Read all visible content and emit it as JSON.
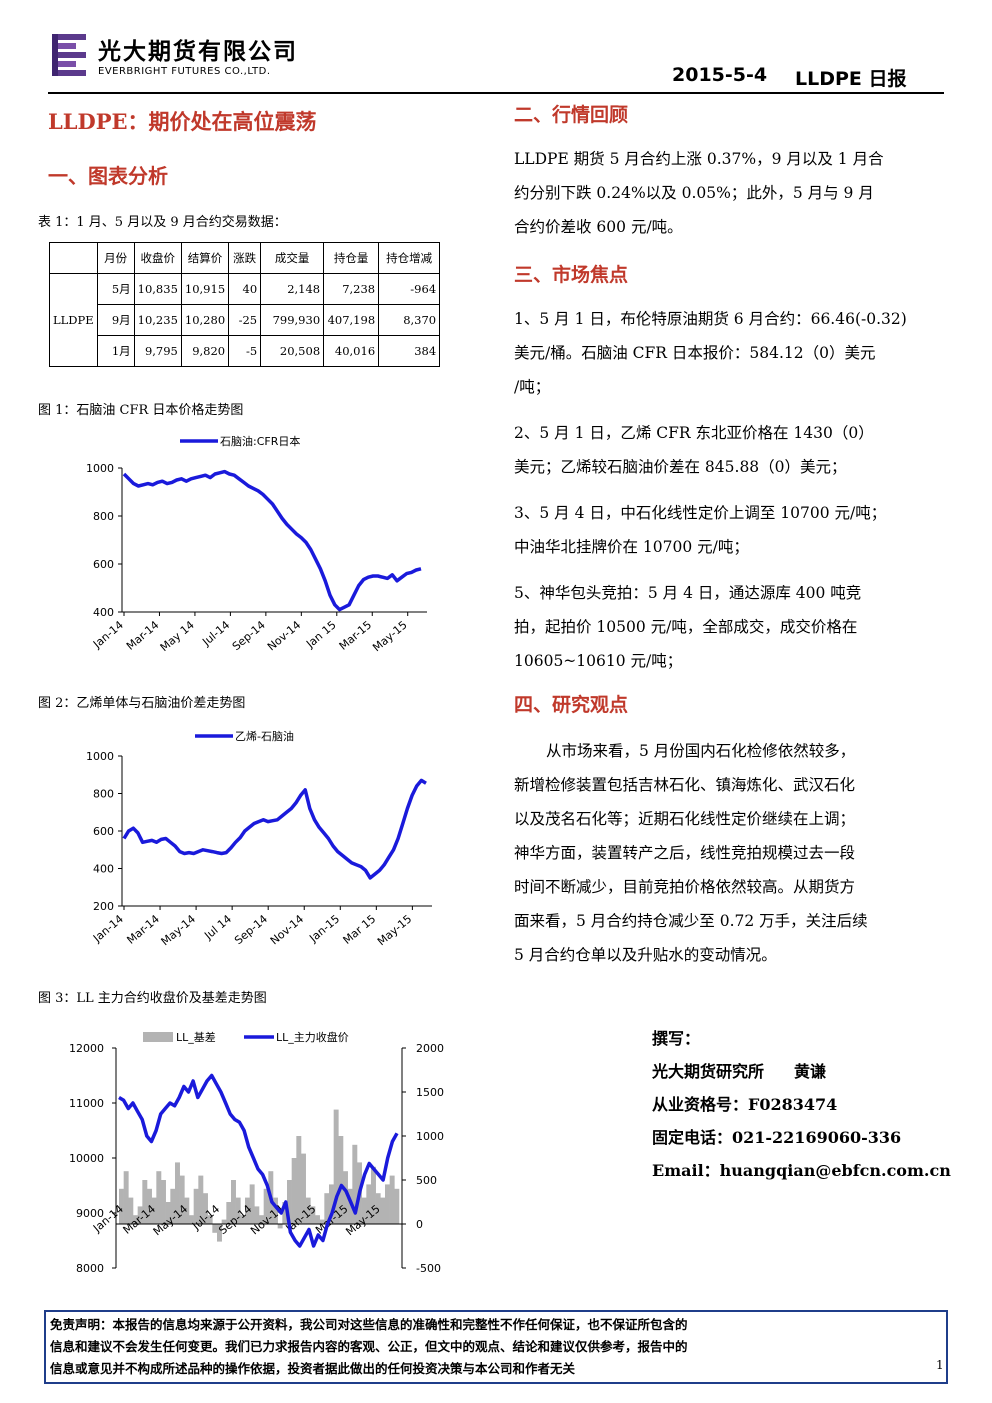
{
  "header": {
    "company_cn": "光大期货有限公司",
    "company_en": "EVERBRIGHT FUTURES CO.,LTD.",
    "date": "2015-5-4",
    "report": "LLDPE 日报"
  },
  "title": "LLDPE：期价处在高位震荡",
  "section1": {
    "heading": "一、图表分析"
  },
  "table1": {
    "caption": "表 1：1 月、5 月以及 9 月合约交易数据：",
    "headers": [
      "月份",
      "收盘价",
      "结算价",
      "涨跌",
      "成交量",
      "持仓量",
      "持仓增减"
    ],
    "row_label": "LLDPE",
    "rows": [
      [
        "5月",
        "10,835",
        "10,915",
        "40",
        "2,148",
        "7,238",
        "-964"
      ],
      [
        "9月",
        "10,235",
        "10,280",
        "-25",
        "799,930",
        "407,198",
        "8,370"
      ],
      [
        "1月",
        "9,795",
        "9,820",
        "-5",
        "20,508",
        "40,016",
        "384"
      ]
    ]
  },
  "fig1": {
    "caption": "图 1：石脑油 CFR 日本价格走势图"
  },
  "fig2": {
    "caption": "图 2：乙烯单体与石脑油价差走势图"
  },
  "fig3": {
    "caption": "图 3：LL 主力合约收盘价及基差走势图"
  },
  "chart_data": [
    {
      "type": "line",
      "legend": [
        "石脑油:CFR日本"
      ],
      "series": [
        {
          "name": "石脑油:CFR日本",
          "color": "#1a1adb",
          "values": [
            975,
            955,
            935,
            925,
            930,
            935,
            930,
            940,
            945,
            935,
            940,
            950,
            955,
            945,
            955,
            960,
            965,
            970,
            960,
            975,
            980,
            985,
            975,
            970,
            955,
            940,
            925,
            915,
            905,
            890,
            870,
            850,
            820,
            790,
            765,
            745,
            725,
            710,
            690,
            660,
            620,
            580,
            530,
            470,
            430,
            410,
            420,
            430,
            470,
            510,
            535,
            545,
            550,
            550,
            545,
            540,
            555,
            530,
            545,
            560,
            565,
            575,
            580
          ]
        }
      ],
      "x_ticks": [
        "Jan-14",
        "Mar-14",
        "May 14",
        "Jul-14",
        "Sep-14",
        "Nov-14",
        "Jan 15",
        "Mar-15",
        "May-15"
      ],
      "y_ticks": [
        "1000",
        "800",
        "600",
        "400"
      ],
      "ylim": [
        400,
        1000
      ]
    },
    {
      "type": "line",
      "legend": [
        "乙烯-石脑油"
      ],
      "series": [
        {
          "name": "乙烯-石脑油",
          "color": "#1a1adb",
          "values": [
            560,
            600,
            615,
            590,
            540,
            545,
            550,
            540,
            555,
            560,
            540,
            520,
            490,
            480,
            485,
            480,
            490,
            500,
            495,
            490,
            485,
            480,
            485,
            510,
            540,
            565,
            600,
            620,
            640,
            650,
            660,
            650,
            655,
            660,
            680,
            700,
            720,
            750,
            790,
            820,
            720,
            660,
            620,
            590,
            560,
            520,
            490,
            470,
            450,
            430,
            420,
            410,
            390,
            350,
            370,
            390,
            420,
            460,
            500,
            560,
            640,
            720,
            790,
            840,
            870,
            855
          ]
        }
      ],
      "x_ticks": [
        "Jan-14",
        "Mar-14",
        "May-14",
        "Jul 14",
        "Sep-14",
        "Nov-14",
        "Jan-15",
        "Mar 15",
        "May-15"
      ],
      "y_ticks": [
        "1000",
        "800",
        "600",
        "400",
        "200"
      ],
      "ylim": [
        200,
        1000
      ]
    },
    {
      "type": "line",
      "legend": [
        "LL_基差",
        "LL_主力收盘价"
      ],
      "series": [
        {
          "name": "LL_基差",
          "color": "#b3b3b3",
          "axis": "right",
          "type": "area",
          "values": [
            400,
            600,
            300,
            100,
            200,
            500,
            400,
            300,
            600,
            500,
            250,
            400,
            700,
            550,
            300,
            100,
            400,
            550,
            350,
            100,
            -100,
            -200,
            50,
            250,
            500,
            300,
            100,
            300,
            450,
            200,
            100,
            400,
            600,
            300,
            -50,
            250,
            500,
            750,
            1000,
            800,
            300,
            200,
            100,
            50,
            350,
            450,
            1300,
            1000,
            600,
            400,
            900,
            700,
            300,
            450,
            650,
            350,
            300,
            450,
            550,
            400
          ]
        },
        {
          "name": "LL_主力收盘价",
          "color": "#1a1adb",
          "axis": "left",
          "values": [
            11100,
            11050,
            10900,
            11000,
            10850,
            10700,
            10400,
            10300,
            10500,
            10800,
            10900,
            11000,
            10950,
            11100,
            11300,
            11200,
            11400,
            11100,
            11250,
            11400,
            11500,
            11350,
            11200,
            11000,
            10800,
            10700,
            10650,
            10500,
            10200,
            10000,
            9800,
            9700,
            9500,
            9200,
            9100,
            9000,
            9200,
            8650,
            8500,
            8400,
            8550,
            8700,
            8400,
            8600,
            8500,
            8800,
            9000,
            9300,
            9500,
            9400,
            9200,
            9000,
            9400,
            9700,
            9900,
            9800,
            9700,
            9600,
            10000,
            10300,
            10450
          ]
        }
      ],
      "x_ticks": [
        "Jan-14",
        "Mar-14",
        "May-14",
        "Jul-14",
        "Sep-14",
        "Nov-14",
        "Jan-15",
        "Mar-15",
        "May-15"
      ],
      "y_ticks_left": [
        "12000",
        "11000",
        "10000",
        "9000",
        "8000"
      ],
      "y_ticks_right": [
        "2000",
        "1500",
        "1000",
        "500",
        "0",
        "-500"
      ],
      "ylim_left": [
        8000,
        12000
      ],
      "ylim_right": [
        -500,
        2000
      ]
    }
  ],
  "section2": {
    "heading": "二、行情回顾",
    "lines": [
      "LLDPE 期货 5 月合约上涨 0.37%，9 月以及 1 月合",
      "约分别下跌 0.24%以及 0.05%；此外，5 月与 9 月",
      "合约价差收 600 元/吨。"
    ]
  },
  "section3": {
    "heading": "三、市场焦点",
    "lines": [
      "1、5 月 1 日，布伦特原油期货 6 月合约：66.46(-0.32)",
      "美元/桶。石脑油 CFR 日本报价：584.12（0）美元",
      "/吨；",
      "2、5 月 1 日，乙烯 CFR 东北亚价格在 1430（0）",
      "美元；乙烯较石脑油价差在 845.88（0）美元；",
      "3、5 月 4 日，中石化线性定价上调至 10700 元/吨；",
      "中油华北挂牌价在 10700 元/吨；",
      "5、神华包头竞拍：5 月 4 日，通达源库 400 吨竞",
      "拍，起拍价 10500 元/吨，全部成交，成交价格在",
      "10605~10610 元/吨；"
    ]
  },
  "section4": {
    "heading": "四、研究观点",
    "lines": [
      "从市场来看，5 月份国内石化检修依然较多，",
      "新增检修装置包括吉林石化、镇海炼化、武汉石化",
      "以及茂名石化等；近期石化线性定价继续在上调；",
      "神华方面，装置转产之后，线性竞拍规模过去一段",
      "时间不断减少，目前竞拍价格依然较高。从期货方",
      "面来看，5 月合约持仓减少至 0.72 万手，关注后续",
      "5 月合约仓单以及升贴水的变动情况。"
    ]
  },
  "author": {
    "label": "撰写：",
    "org": "光大期货研究所",
    "name": "黄谦",
    "cert": "从业资格号：F0283474",
    "phone": "固定电话：021-22169060-336",
    "email": "Email：huangqian@ebfcn.com.cn"
  },
  "footer": {
    "lines": [
      "免责声明：本报告的信息均来源于公开资料，我公司对这些信息的准确性和完整性不作任何保证，也不保证所包含的",
      "信息和建议不会发生任何变更。我们已力求报告内容的客观、公正，但文中的观点、结论和建议仅供参考，报告中的",
      "信息或意见并不构成所述品种的操作依据，投资者据此做出的任何投资决策与本公司和作者无关"
    ],
    "page": "1"
  }
}
